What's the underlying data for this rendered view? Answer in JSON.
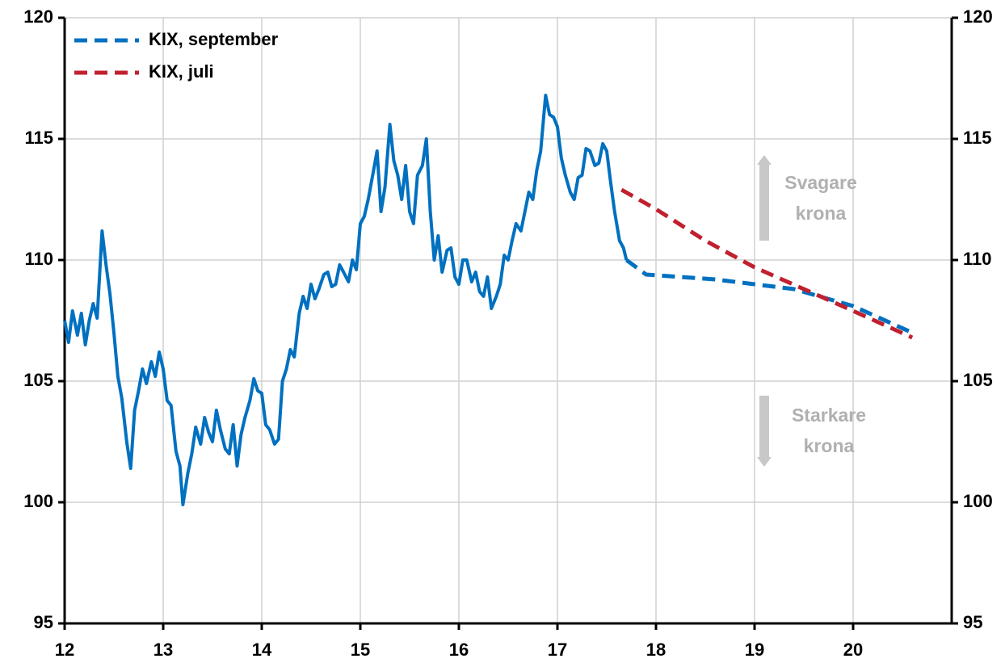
{
  "chart_data": {
    "type": "line",
    "xlim": [
      12,
      21
    ],
    "xticks": [
      12,
      13,
      14,
      15,
      16,
      17,
      18,
      19,
      20
    ],
    "ylim": [
      95,
      120
    ],
    "yticks": [
      95,
      100,
      105,
      110,
      115,
      120
    ],
    "y2lim": [
      95,
      120
    ],
    "y2ticks": [
      95,
      100,
      105,
      110,
      115,
      120
    ],
    "grid": true,
    "legend": "upper left",
    "series": [
      {
        "color": "#0070c0",
        "style": "solid",
        "x": [
          12.0,
          12.04,
          12.08,
          12.13,
          12.17,
          12.21,
          12.25,
          12.29,
          12.33,
          12.38,
          12.42,
          12.46,
          12.5,
          12.54,
          12.58,
          12.63,
          12.67,
          12.71,
          12.75,
          12.79,
          12.83,
          12.88,
          12.92,
          12.96,
          13.0,
          13.04,
          13.08,
          13.13,
          13.17,
          13.2,
          13.25,
          13.29,
          13.33,
          13.38,
          13.42,
          13.46,
          13.5,
          13.54,
          13.58,
          13.63,
          13.67,
          13.71,
          13.75,
          13.79,
          13.83,
          13.88,
          13.92,
          13.96,
          14.0,
          14.04,
          14.08,
          14.13,
          14.17,
          14.21,
          14.25,
          14.29,
          14.33,
          14.38,
          14.42,
          14.46,
          14.5,
          14.54,
          14.58,
          14.63,
          14.67,
          14.71,
          14.75,
          14.79,
          14.83,
          14.88,
          14.92,
          14.96,
          15.0,
          15.04,
          15.08,
          15.13,
          15.17,
          15.21,
          15.25,
          15.3,
          15.34,
          15.38,
          15.42,
          15.46,
          15.5,
          15.54,
          15.58,
          15.63,
          15.67,
          15.71,
          15.75,
          15.79,
          15.83,
          15.88,
          15.92,
          15.96,
          16.0,
          16.04,
          16.08,
          16.13,
          16.17,
          16.21,
          16.25,
          16.29,
          16.33,
          16.38,
          16.42,
          16.46,
          16.5,
          16.54,
          16.58,
          16.63,
          16.67,
          16.71,
          16.75,
          16.79,
          16.83,
          16.88,
          16.92,
          16.96,
          17.0,
          17.04,
          17.08,
          17.13,
          17.17,
          17.21,
          17.25,
          17.29,
          17.33,
          17.38,
          17.42,
          17.46,
          17.5,
          17.54,
          17.58,
          17.63,
          17.67,
          17.7
        ],
        "values": [
          107.5,
          106.6,
          107.9,
          106.9,
          107.8,
          106.5,
          107.5,
          108.2,
          107.6,
          111.2,
          109.8,
          108.6,
          107.0,
          105.2,
          104.3,
          102.5,
          101.4,
          103.8,
          104.6,
          105.5,
          104.9,
          105.8,
          105.2,
          106.2,
          105.5,
          104.2,
          104.0,
          102.1,
          101.5,
          99.9,
          101.2,
          102.0,
          103.1,
          102.4,
          103.5,
          102.9,
          102.5,
          103.8,
          103.0,
          102.2,
          102.0,
          103.2,
          101.5,
          102.8,
          103.5,
          104.2,
          105.1,
          104.6,
          104.5,
          103.2,
          103.0,
          102.4,
          102.6,
          105.0,
          105.5,
          106.3,
          106.0,
          107.8,
          108.5,
          108.0,
          109.0,
          108.4,
          108.8,
          109.4,
          109.5,
          108.9,
          109.0,
          109.8,
          109.5,
          109.1,
          110.0,
          109.6,
          111.5,
          111.8,
          112.5,
          113.6,
          114.5,
          112.0,
          113.0,
          115.6,
          114.1,
          113.5,
          112.5,
          113.9,
          112.0,
          111.5,
          113.5,
          113.9,
          115.0,
          112.0,
          110.0,
          111.0,
          109.5,
          110.4,
          110.5,
          109.3,
          109.0,
          110.0,
          110.0,
          109.1,
          109.5,
          108.7,
          108.5,
          109.3,
          108.0,
          108.5,
          109.0,
          110.2,
          110.0,
          110.8,
          111.5,
          111.2,
          112.0,
          112.8,
          112.5,
          113.7,
          114.5,
          116.8,
          116.0,
          115.9,
          115.5,
          114.2,
          113.5,
          112.8,
          112.5,
          113.4,
          113.5,
          114.6,
          114.5,
          113.9,
          114.0,
          114.8,
          114.5,
          113.2,
          112.0,
          110.8,
          110.5,
          110.0
        ]
      },
      {
        "name": "KIX, september",
        "color": "#0070c0",
        "style": "dashed",
        "x": [
          17.7,
          17.9,
          18.6,
          19.0,
          19.4,
          20.0,
          20.6
        ],
        "values": [
          110.0,
          109.4,
          109.2,
          109.0,
          108.8,
          108.1,
          107.0
        ]
      },
      {
        "name": "KIX, juli",
        "color": "#c0202f",
        "style": "dashed",
        "x": [
          17.65,
          18.0,
          18.5,
          19.0,
          19.5,
          20.0,
          20.6
        ],
        "values": [
          112.9,
          112.1,
          110.8,
          109.7,
          108.8,
          107.9,
          106.8
        ]
      }
    ],
    "annotations": [
      {
        "lines": [
          "Svagare",
          "krona"
        ],
        "arrow": "up"
      },
      {
        "lines": [
          "Starkare",
          "krona"
        ],
        "arrow": "down"
      }
    ]
  }
}
